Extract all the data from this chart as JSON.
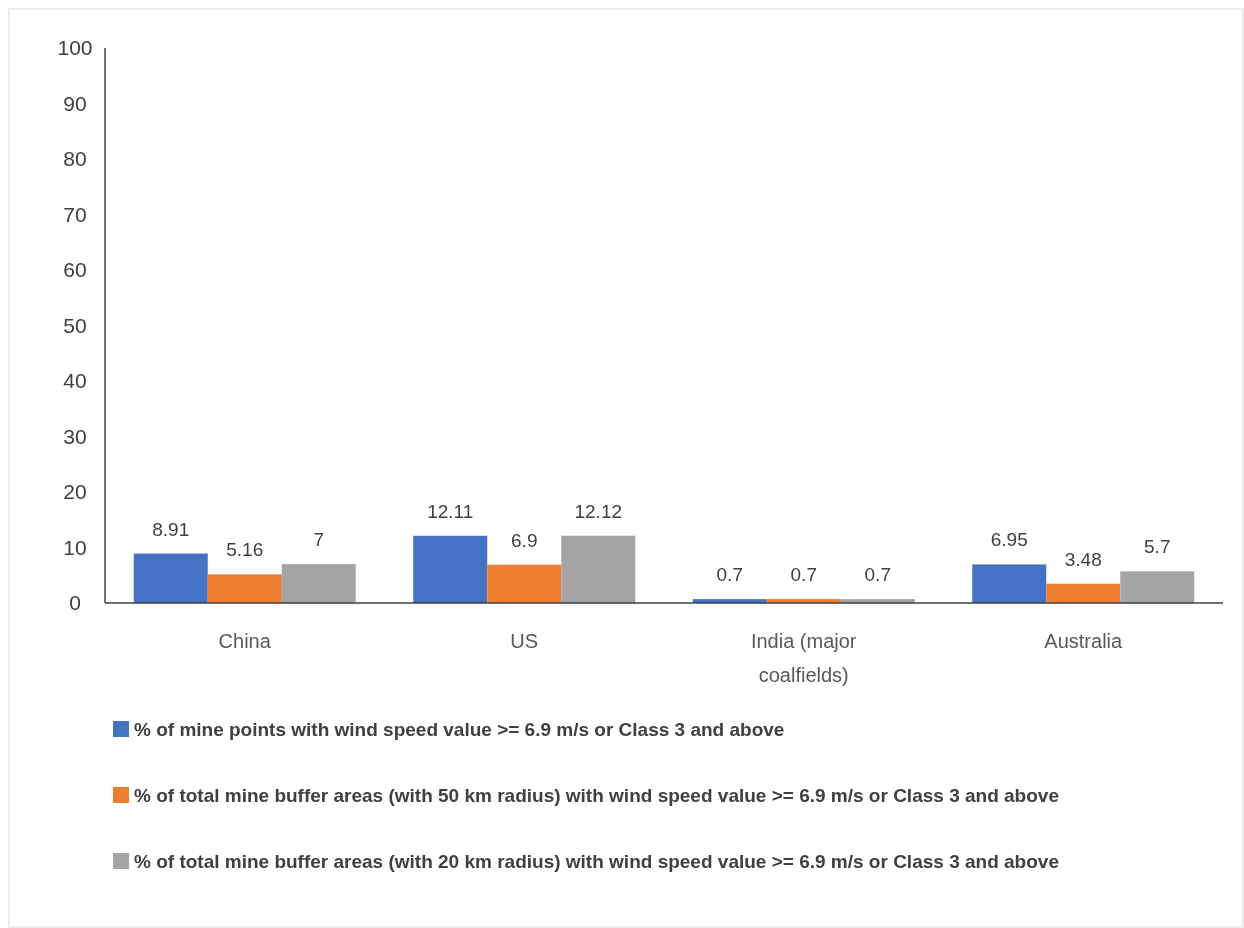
{
  "chart_data": {
    "type": "bar",
    "categories": [
      "China",
      "US",
      "India  (major coalfields)",
      "Australia"
    ],
    "series": [
      {
        "name": "% of mine points with wind speed value >= 6.9 m/s or Class 3 and above",
        "color": "#4472c4",
        "values": [
          8.91,
          12.11,
          0.7,
          6.95
        ]
      },
      {
        "name": "% of total mine buffer areas (with 50 km radius) with wind speed value >= 6.9 m/s or Class 3 and above",
        "color": "#ed7d31",
        "values": [
          5.16,
          6.9,
          0.7,
          3.48
        ]
      },
      {
        "name": "% of total mine buffer areas (with 20 km radius) with wind speed value >= 6.9 m/s or Class 3 and above",
        "color": "#a5a5a5",
        "values": [
          7,
          12.12,
          0.7,
          5.7
        ]
      }
    ],
    "ylim": [
      0,
      100
    ],
    "yticks": [
      0,
      10,
      20,
      30,
      40,
      50,
      60,
      70,
      80,
      90,
      100
    ],
    "grid": false,
    "legend": "bottom",
    "data_labels": true
  }
}
